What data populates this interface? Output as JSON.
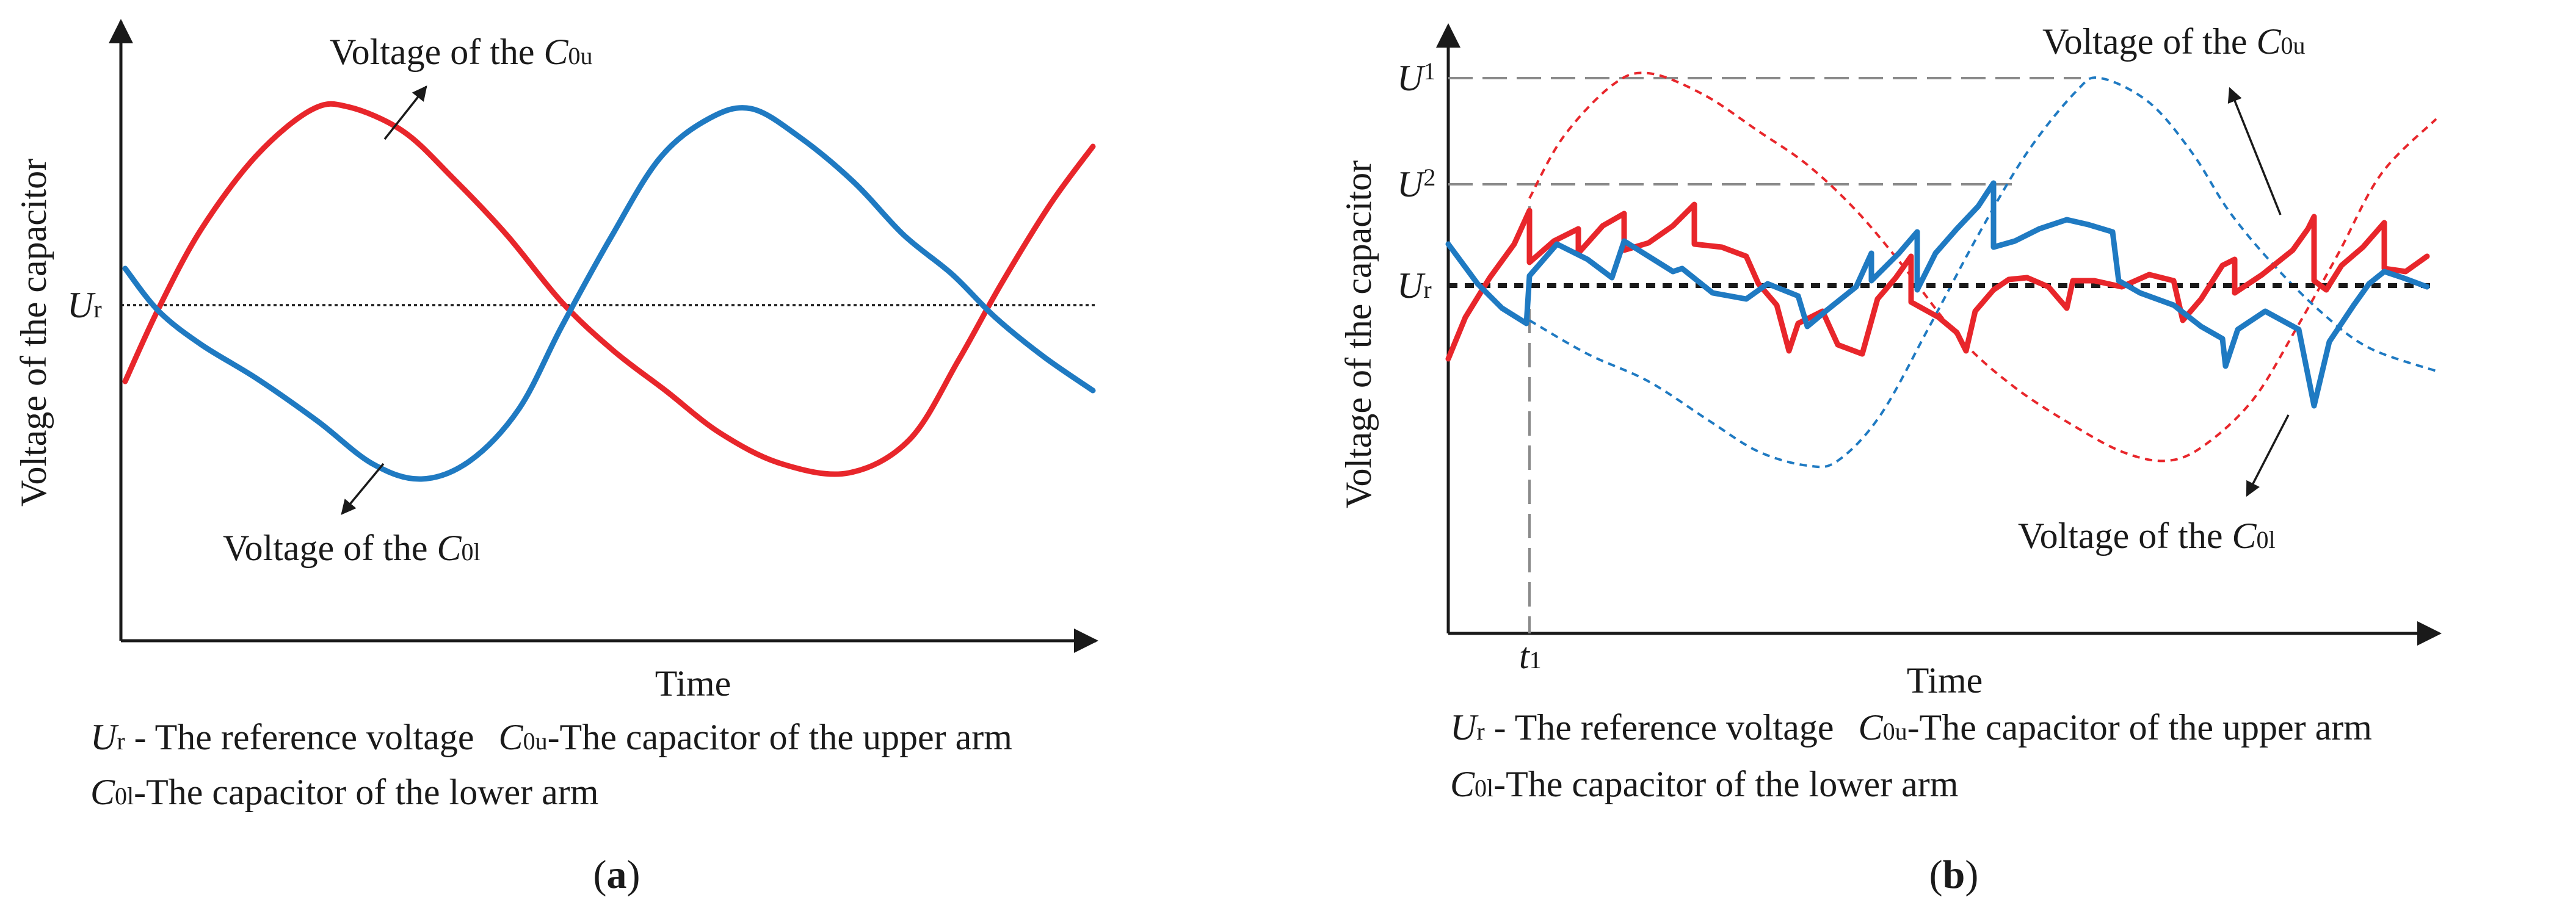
{
  "figure": {
    "panel_a": {
      "label_open": "(",
      "label_letter": "a",
      "label_close": ")",
      "ylabel": "Voltage of the capacitor",
      "xlabel": "Time",
      "ref_symbol": "U",
      "ref_sub": "r",
      "annot_upper_prefix": "Voltage of the ",
      "annot_upper_sym": "C",
      "annot_upper_sub": "0u",
      "annot_lower_prefix": "Voltage of the ",
      "annot_lower_sym": "C",
      "annot_lower_sub": "0l",
      "legend_line1_sym1": "U",
      "legend_line1_sub1": "r",
      "legend_line1_text1": " - The reference voltage",
      "legend_line1_sym2": "C",
      "legend_line1_sub2": "0u",
      "legend_line1_text2": "-The capacitor of the upper arm",
      "legend_line2_sym": "C",
      "legend_line2_sub": "0l",
      "legend_line2_text": "-The capacitor of the lower arm"
    },
    "panel_b": {
      "label_open": "(",
      "label_letter": "b",
      "label_close": ")",
      "ylabel": "Voltage of the capacitor",
      "xlabel": "Time",
      "u1_symbol": "U",
      "u1_sub": "1",
      "u2_symbol": "U",
      "u2_sub": "2",
      "ref_symbol": "U",
      "ref_sub": "r",
      "t1_symbol": "t",
      "t1_sub": "1",
      "annot_upper_prefix": "Voltage of the ",
      "annot_upper_sym": "C",
      "annot_upper_sub": "0u",
      "annot_lower_prefix": "Voltage of the ",
      "annot_lower_sym": "C",
      "annot_lower_sub": "0l",
      "legend_line1_sym1": "U",
      "legend_line1_sub1": "r",
      "legend_line1_text1": " - The reference voltage",
      "legend_line1_sym2": "C",
      "legend_line1_sub2": "0u",
      "legend_line1_text2": "-The capacitor of the upper arm",
      "legend_line2_sym": "C",
      "legend_line2_sub": "0l",
      "legend_line2_text": "-The capacitor of the lower arm"
    }
  },
  "colors": {
    "upper_arm": "#e8262b",
    "lower_arm": "#1f7ac2",
    "axis": "#1a1a1a",
    "guide": "#8a8a8a"
  }
}
